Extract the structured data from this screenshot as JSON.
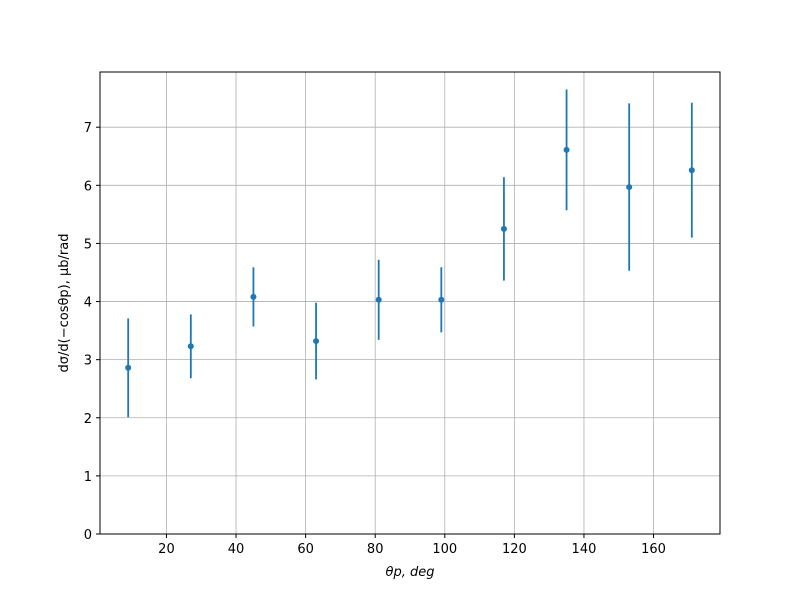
{
  "chart_data": {
    "type": "errorbar",
    "xlabel": "θp, deg",
    "ylabel": "dσ/d(−cosθp), μb/rad",
    "x": [
      9,
      27,
      45,
      63,
      81,
      99,
      117,
      135,
      153,
      171
    ],
    "series": [
      {
        "color": "#1f77b4",
        "values": [
          2.86,
          3.23,
          4.08,
          3.32,
          4.03,
          4.03,
          5.25,
          6.61,
          5.97,
          6.26
        ],
        "errors": [
          0.85,
          0.55,
          0.51,
          0.66,
          0.69,
          0.56,
          0.89,
          1.04,
          1.44,
          1.16
        ]
      }
    ],
    "xlim": [
      0.9,
      179.1
    ],
    "xticks": [
      20,
      40,
      60,
      80,
      100,
      120,
      140,
      160
    ],
    "ylim": [
      0,
      7.95
    ],
    "yticks": [
      0,
      1,
      2,
      3,
      4,
      5,
      6,
      7
    ],
    "grid": true
  }
}
